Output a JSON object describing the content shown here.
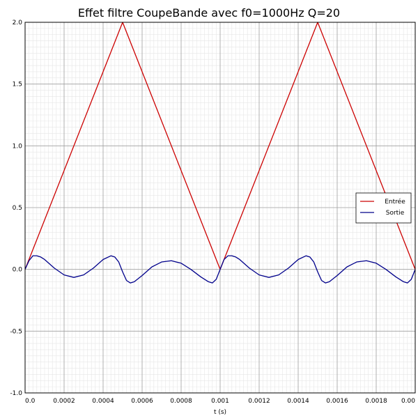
{
  "chart_data": {
    "type": "line",
    "title": "Effet filtre CoupeBande avec f0=1000Hz Q=20",
    "xlabel": "t (s)",
    "ylabel": "",
    "xlim": [
      0,
      0.002
    ],
    "ylim": [
      -1.0,
      2.0
    ],
    "x_ticks": [
      "0.0",
      "0.0002",
      "0.0004",
      "0.0006",
      "0.0008",
      "0.001",
      "0.0012",
      "0.0014",
      "0.0016",
      "0.0018",
      "0.00"
    ],
    "y_ticks": [
      "2.0",
      "1.5",
      "1.0",
      "0.5",
      "0.0",
      "-0.5",
      "-1.0"
    ],
    "grid": true,
    "minor_grid": true,
    "legend_position": "right",
    "series": [
      {
        "name": "Entrée",
        "color": "#cc0000",
        "x": [
          0,
          0.0005,
          0.001,
          0.0015,
          0.002
        ],
        "y": [
          0.0,
          2.0,
          0.0,
          2.0,
          0.0
        ]
      },
      {
        "name": "Sortie",
        "color": "#00008b",
        "x": [
          0,
          2e-05,
          4e-05,
          6e-05,
          8e-05,
          0.0001,
          0.00015,
          0.0002,
          0.00025,
          0.0003,
          0.00035,
          0.0004,
          0.00044,
          0.00046,
          0.00048,
          0.0005,
          0.00052,
          0.00054,
          0.00056,
          0.0006,
          0.00065,
          0.0007,
          0.00075,
          0.0008,
          0.00085,
          0.0009,
          0.00094,
          0.00096,
          0.00098,
          0.001,
          0.00102,
          0.00104,
          0.00106,
          0.00108,
          0.0011,
          0.00115,
          0.0012,
          0.00125,
          0.0013,
          0.00135,
          0.0014,
          0.00144,
          0.00146,
          0.00148,
          0.0015,
          0.00152,
          0.00154,
          0.00156,
          0.0016,
          0.00165,
          0.0017,
          0.00175,
          0.0018,
          0.00185,
          0.0019,
          0.00194,
          0.00196,
          0.00198,
          0.002
        ],
        "y": [
          0.0,
          0.07,
          0.11,
          0.11,
          0.1,
          0.08,
          0.01,
          -0.045,
          -0.065,
          -0.045,
          0.01,
          0.08,
          0.11,
          0.1,
          0.06,
          -0.02,
          -0.09,
          -0.11,
          -0.1,
          -0.05,
          0.02,
          0.06,
          0.07,
          0.05,
          0.0,
          -0.06,
          -0.1,
          -0.11,
          -0.08,
          0.0,
          0.08,
          0.11,
          0.11,
          0.1,
          0.08,
          0.01,
          -0.045,
          -0.065,
          -0.045,
          0.01,
          0.08,
          0.11,
          0.1,
          0.06,
          -0.02,
          -0.09,
          -0.11,
          -0.1,
          -0.05,
          0.02,
          0.06,
          0.07,
          0.05,
          0.0,
          -0.06,
          -0.1,
          -0.11,
          -0.08,
          0.0
        ]
      }
    ]
  }
}
